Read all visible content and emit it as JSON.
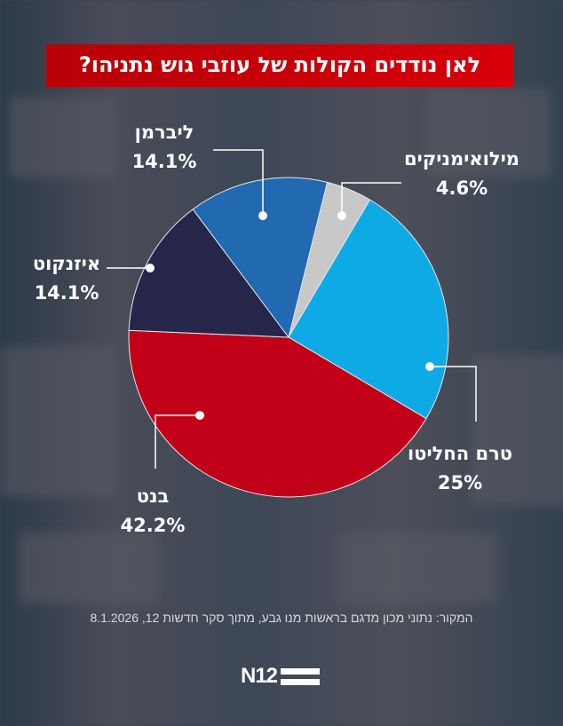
{
  "title": "לאן נודדים הקולות של עוזבי גוש נתניהו?",
  "source": "המקור: נתוני מכון מדגם בראשות מנו גבע, מתוך סקר חדשות 12, 8.1.2026",
  "logo": "N12",
  "chart_data": {
    "type": "pie",
    "title": "לאן נודדים הקולות של עוזבי גוש נתניהו?",
    "slices": [
      {
        "label": "מילואימניקים",
        "value": 4.6,
        "display": "4.6%",
        "color": "#c8c8c8"
      },
      {
        "label": "טרם החליטו",
        "value": 25,
        "display": "25%",
        "color": "#0eaae6"
      },
      {
        "label": "בנט",
        "value": 42.2,
        "display": "42.2%",
        "color": "#c20018"
      },
      {
        "label": "איזנקוט",
        "value": 14.1,
        "display": "14.1%",
        "color": "#25264a"
      },
      {
        "label": "ליברמן",
        "value": 14.1,
        "display": "14.1%",
        "color": "#2169b0"
      }
    ],
    "start_angle_deg": 14,
    "direction": "clockwise"
  }
}
